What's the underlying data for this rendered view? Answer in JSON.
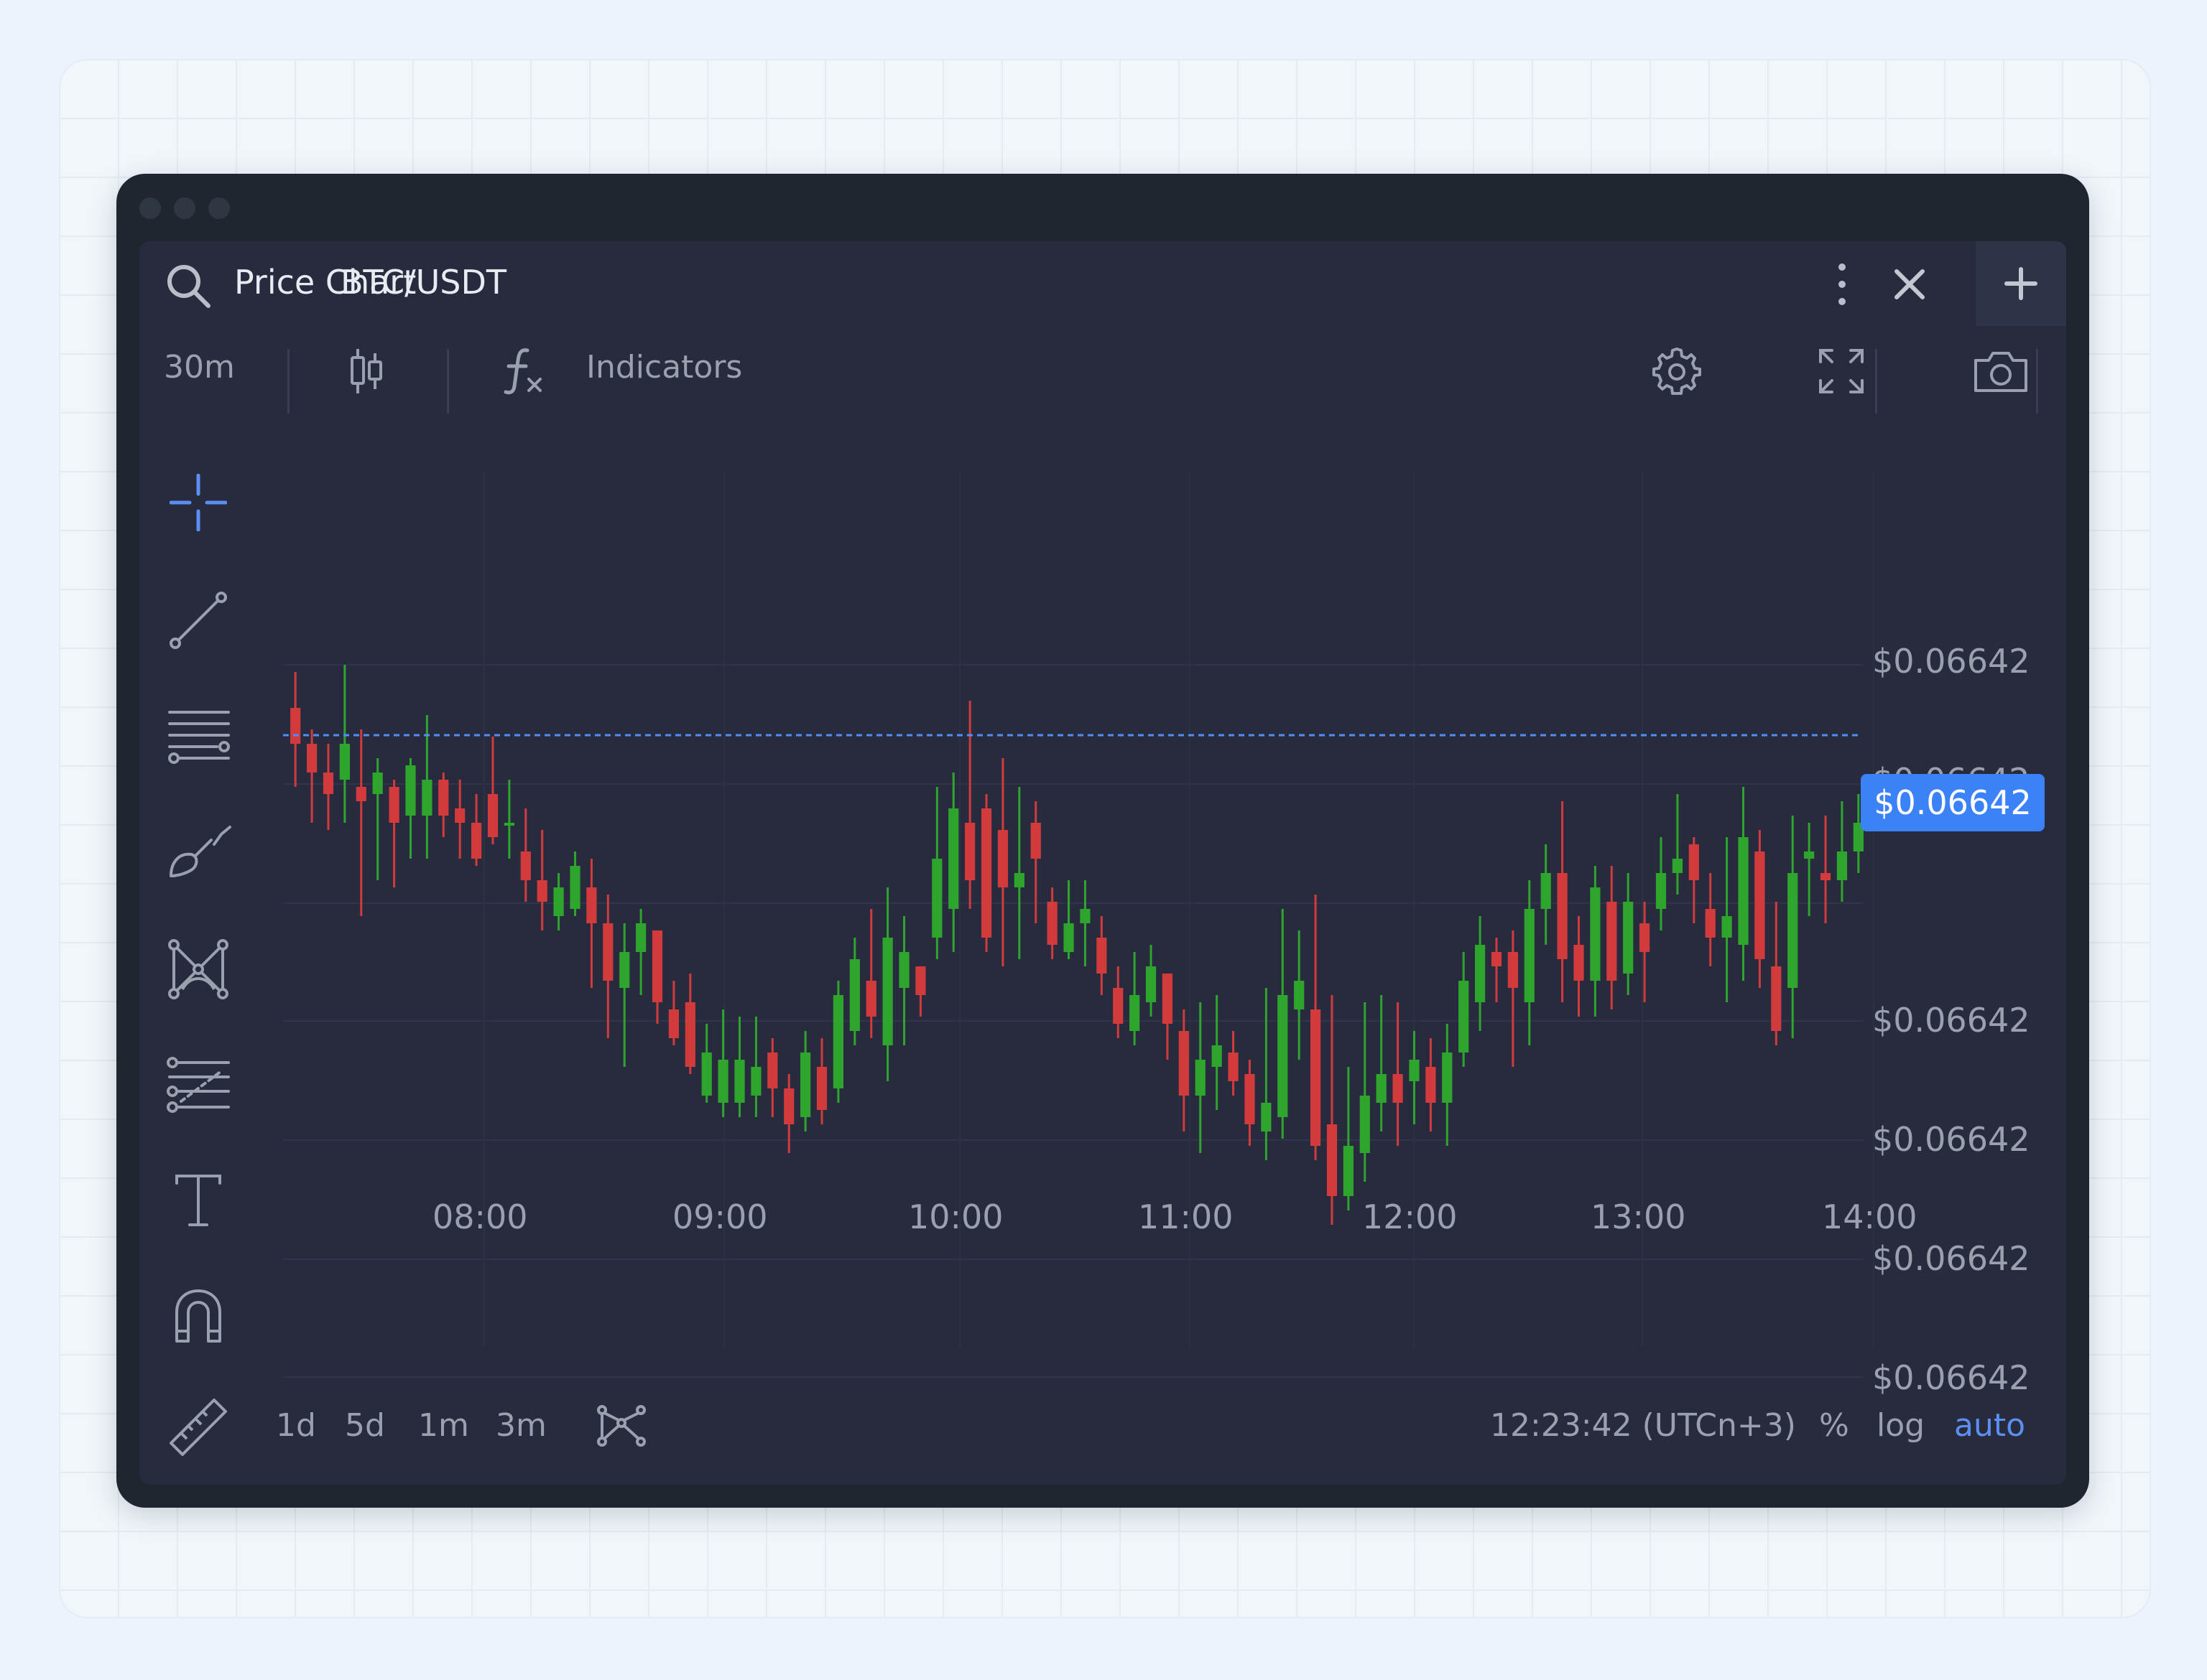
{
  "header": {
    "title": "Price Chart",
    "symbol": "BTC/USDT"
  },
  "toolbar": {
    "interval": "30m",
    "indicators_label": "Indicators"
  },
  "drawing_tools": [
    {
      "icon": "crosshair-icon"
    },
    {
      "icon": "trend-line-icon"
    },
    {
      "icon": "horizontal-lines-icon"
    },
    {
      "icon": "brush-icon"
    },
    {
      "icon": "pattern-icon"
    },
    {
      "icon": "fib-levels-icon"
    },
    {
      "icon": "text-icon"
    },
    {
      "icon": "magnet-icon"
    },
    {
      "icon": "ruler-icon"
    }
  ],
  "chart_data": {
    "type": "candlestick",
    "x_tick_labels": [
      "08:00",
      "09:00",
      "10:00",
      "11:00",
      "12:00",
      "13:00",
      "14:00"
    ],
    "y_tick_labels": [
      "$0.06642",
      "$0.06642",
      "$0.06642",
      "$0.06642",
      "$0.06642",
      "$0.06642",
      "$0.06642"
    ],
    "current_price_label": "$0.06642",
    "price_line_style": "dashed",
    "up_color": "#2ea62e",
    "down_color": "#d23b3b",
    "grid": true,
    "candles_ohlc_relative": [
      [
        87,
        82,
        92,
        76
      ],
      [
        82,
        78,
        84,
        71
      ],
      [
        78,
        75,
        82,
        70
      ],
      [
        77,
        82,
        93,
        71
      ],
      [
        76,
        74,
        84,
        58
      ],
      [
        75,
        78,
        80,
        63
      ],
      [
        76,
        71,
        77,
        62
      ],
      [
        72,
        79,
        80,
        66
      ],
      [
        72,
        77,
        86,
        66
      ],
      [
        77,
        72,
        78,
        69
      ],
      [
        73,
        71,
        77,
        66
      ],
      [
        71,
        66,
        75,
        65
      ],
      [
        75,
        69,
        83,
        68
      ],
      [
        71,
        71,
        77,
        66
      ],
      [
        67,
        63,
        73,
        60
      ],
      [
        63,
        60,
        70,
        56
      ],
      [
        58,
        62,
        64,
        56
      ],
      [
        59,
        65,
        67,
        58
      ],
      [
        62,
        57,
        66,
        48
      ],
      [
        57,
        49,
        61,
        41
      ],
      [
        48,
        53,
        57,
        37
      ],
      [
        53,
        57,
        59,
        47
      ],
      [
        56,
        46,
        56,
        43
      ],
      [
        45,
        41,
        49,
        40
      ],
      [
        46,
        37,
        50,
        36
      ],
      [
        33,
        39,
        43,
        32
      ],
      [
        32,
        38,
        45,
        30
      ],
      [
        32,
        38,
        44,
        30
      ],
      [
        33,
        37,
        44,
        30
      ],
      [
        39,
        34,
        41,
        30
      ],
      [
        34,
        29,
        36,
        25
      ],
      [
        30,
        39,
        42,
        28
      ],
      [
        37,
        31,
        41,
        29
      ],
      [
        34,
        47,
        49,
        32
      ],
      [
        42,
        52,
        55,
        40
      ],
      [
        49,
        44,
        59,
        41
      ],
      [
        40,
        55,
        62,
        35
      ],
      [
        48,
        53,
        58,
        40
      ],
      [
        51,
        47,
        51,
        44
      ],
      [
        55,
        66,
        76,
        52
      ],
      [
        59,
        73,
        78,
        53
      ],
      [
        71,
        63,
        88,
        59
      ],
      [
        73,
        55,
        75,
        53
      ],
      [
        70,
        62,
        80,
        51
      ],
      [
        62,
        64,
        76,
        52
      ],
      [
        71,
        66,
        74,
        57
      ],
      [
        60,
        54,
        62,
        52
      ],
      [
        53,
        57,
        63,
        52
      ],
      [
        57,
        59,
        63,
        51
      ],
      [
        55,
        50,
        58,
        47
      ],
      [
        48,
        43,
        51,
        41
      ],
      [
        42,
        47,
        53,
        40
      ],
      [
        46,
        51,
        54,
        44
      ],
      [
        50,
        43,
        50,
        38
      ],
      [
        42,
        33,
        45,
        28
      ],
      [
        33,
        38,
        46,
        25
      ],
      [
        37,
        40,
        47,
        31
      ],
      [
        39,
        35,
        42,
        33
      ],
      [
        36,
        29,
        38,
        26
      ],
      [
        28,
        32,
        48,
        24
      ],
      [
        30,
        47,
        59,
        27
      ],
      [
        45,
        49,
        56,
        38
      ],
      [
        45,
        26,
        61,
        24
      ],
      [
        29,
        19,
        47,
        15
      ],
      [
        19,
        26,
        37,
        17
      ],
      [
        25,
        33,
        46,
        21
      ],
      [
        32,
        36,
        47,
        28
      ],
      [
        36,
        32,
        46,
        26
      ],
      [
        35,
        38,
        42,
        29
      ],
      [
        37,
        32,
        41,
        28
      ],
      [
        32,
        39,
        43,
        26
      ],
      [
        39,
        49,
        53,
        37
      ],
      [
        46,
        54,
        58,
        42
      ],
      [
        53,
        51,
        55,
        46
      ],
      [
        53,
        48,
        56,
        37
      ],
      [
        46,
        59,
        63,
        40
      ],
      [
        59,
        64,
        68,
        54
      ],
      [
        64,
        52,
        74,
        46
      ],
      [
        54,
        49,
        58,
        44
      ],
      [
        49,
        62,
        65,
        44
      ],
      [
        60,
        49,
        65,
        45
      ],
      [
        50,
        60,
        64,
        47
      ],
      [
        57,
        53,
        60,
        46
      ],
      [
        59,
        64,
        69,
        56
      ],
      [
        64,
        66,
        75,
        61
      ],
      [
        68,
        63,
        69,
        57
      ],
      [
        59,
        55,
        64,
        51
      ],
      [
        55,
        58,
        69,
        46
      ],
      [
        54,
        69,
        76,
        49
      ],
      [
        67,
        52,
        70,
        48
      ],
      [
        51,
        42,
        60,
        40
      ],
      [
        48,
        64,
        72,
        41
      ],
      [
        66,
        67,
        71,
        58
      ],
      [
        64,
        63,
        72,
        57
      ],
      [
        63,
        67,
        74,
        60
      ],
      [
        67,
        71,
        75,
        64
      ]
    ]
  },
  "range_buttons": [
    "1d",
    "5d",
    "1m",
    "3m"
  ],
  "status": {
    "time": "12:23:42 (UTCn+3)",
    "percent": "%",
    "log": "log",
    "auto": "auto"
  },
  "colors": {
    "accent": "#3b82f6",
    "panel_bg": "#282b3e",
    "window_bg": "#1f262f"
  }
}
